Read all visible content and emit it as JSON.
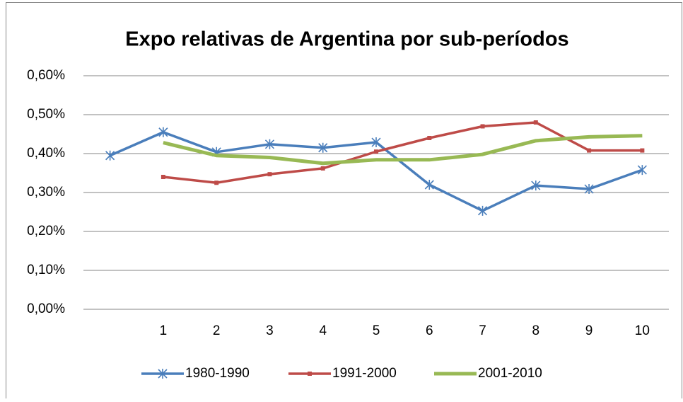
{
  "chart_data": {
    "type": "line",
    "title": "Expo relativas de Argentina por sub-períodos",
    "categories": [
      null,
      "1",
      "2",
      "3",
      "4",
      "5",
      "6",
      "7",
      "8",
      "9",
      "10"
    ],
    "series": [
      {
        "name": "1980-1990",
        "color": "#4a7ebb",
        "marker": "star",
        "values": [
          0.395,
          0.455,
          0.404,
          0.424,
          0.415,
          0.429,
          0.32,
          0.253,
          0.318,
          0.309,
          0.358
        ]
      },
      {
        "name": "1991-2000",
        "color": "#be4b48",
        "marker": "square",
        "values": [
          null,
          0.34,
          0.325,
          0.347,
          0.362,
          0.405,
          0.44,
          0.47,
          0.48,
          0.408,
          0.408
        ]
      },
      {
        "name": "2001-2010",
        "color": "#98b954",
        "marker": "none",
        "values": [
          null,
          0.428,
          0.395,
          0.39,
          0.375,
          0.384,
          0.384,
          0.398,
          0.433,
          0.443,
          0.446
        ]
      }
    ],
    "ylim": [
      0,
      0.6
    ],
    "yticks": [
      {
        "value": 0,
        "label": "0,00%"
      },
      {
        "value": 0.1,
        "label": "0,10%"
      },
      {
        "value": 0.2,
        "label": "0,20%"
      },
      {
        "value": 0.3,
        "label": "0,30%"
      },
      {
        "value": 0.4,
        "label": "0,40%"
      },
      {
        "value": 0.5,
        "label": "0,50%"
      },
      {
        "value": 0.6,
        "label": "0,60%"
      }
    ],
    "grid": true,
    "legend": "bottom"
  }
}
